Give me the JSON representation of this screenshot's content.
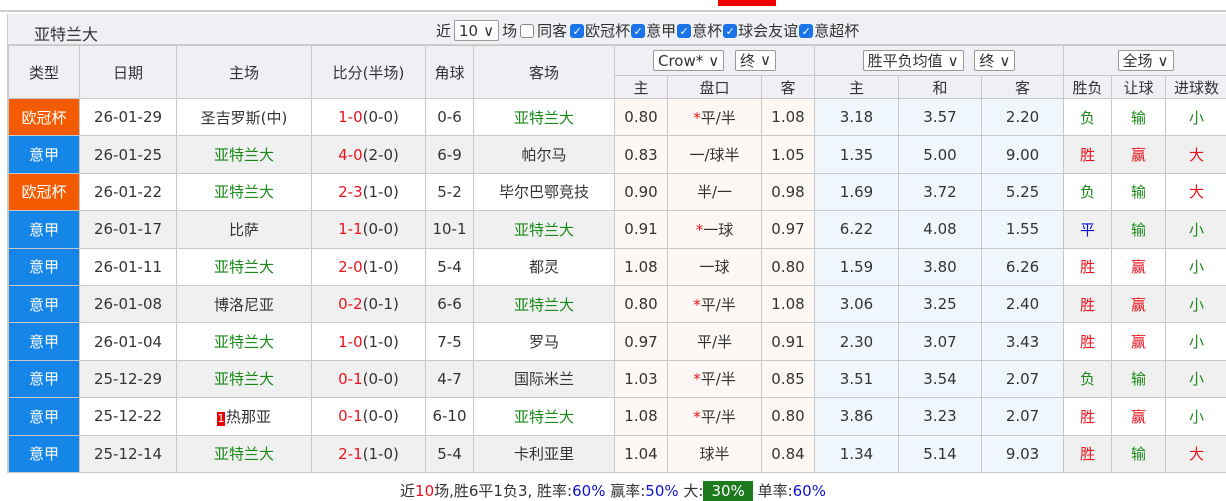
{
  "team": "亚特兰大",
  "filters": {
    "recent_label": "近",
    "count": "10",
    "games_label": "场",
    "same_home": "同客",
    "leagues": [
      "欧冠杯",
      "意甲",
      "意杯",
      "球会友谊",
      "意超杯"
    ]
  },
  "headers": {
    "type": "类型",
    "date": "日期",
    "home": "主场",
    "score": "比分(半场)",
    "corner": "角球",
    "away": "客场",
    "handicap_company": "Crow*",
    "handicap_stage": "终",
    "odds_type": "胜平负均值",
    "odds_stage": "终",
    "scope": "全场",
    "sub": [
      "主",
      "盘口",
      "客",
      "主",
      "和",
      "客",
      "胜负",
      "让球",
      "进球数"
    ]
  },
  "colors": {
    "欧冠杯": "#f45b00",
    "意甲": "#1586e8"
  },
  "rows": [
    {
      "type": "欧冠杯",
      "date": "26-01-29",
      "home": "圣吉罗斯(中)",
      "home_hl": false,
      "ft": "1-0",
      "ht": "(0-0)",
      "corner": "0-6",
      "away": "亚特兰大",
      "away_hl": true,
      "h1": "0.80",
      "star": true,
      "line": "平/半",
      "h2": "1.08",
      "o1": "3.18",
      "ox": "3.57",
      "o2": "2.20",
      "r": "负",
      "rc": "green",
      "ah": "输",
      "ahc": "green",
      "ou": "小",
      "ouc": "green"
    },
    {
      "type": "意甲",
      "date": "26-01-25",
      "home": "亚特兰大",
      "home_hl": true,
      "ft": "4-0",
      "ht": "(2-0)",
      "corner": "6-9",
      "away": "帕尔马",
      "away_hl": false,
      "h1": "0.83",
      "star": false,
      "line": "一/球半",
      "h2": "1.05",
      "o1": "1.35",
      "ox": "5.00",
      "o2": "9.00",
      "r": "胜",
      "rc": "red",
      "ah": "赢",
      "ahc": "red",
      "ou": "大",
      "ouc": "red"
    },
    {
      "type": "欧冠杯",
      "date": "26-01-22",
      "home": "亚特兰大",
      "home_hl": true,
      "ft": "2-3",
      "ht": "(1-0)",
      "corner": "5-2",
      "away": "毕尔巴鄂竞技",
      "away_hl": false,
      "h1": "0.90",
      "star": false,
      "line": "半/一",
      "h2": "0.98",
      "o1": "1.69",
      "ox": "3.72",
      "o2": "5.25",
      "r": "负",
      "rc": "green",
      "ah": "输",
      "ahc": "green",
      "ou": "大",
      "ouc": "red"
    },
    {
      "type": "意甲",
      "date": "26-01-17",
      "home": "比萨",
      "home_hl": false,
      "ft": "1-1",
      "ht": "(0-0)",
      "corner": "10-1",
      "away": "亚特兰大",
      "away_hl": true,
      "h1": "0.91",
      "star": true,
      "line": "一球",
      "h2": "0.97",
      "o1": "6.22",
      "ox": "4.08",
      "o2": "1.55",
      "r": "平",
      "rc": "blue",
      "ah": "输",
      "ahc": "green",
      "ou": "小",
      "ouc": "green"
    },
    {
      "type": "意甲",
      "date": "26-01-11",
      "home": "亚特兰大",
      "home_hl": true,
      "ft": "2-0",
      "ht": "(1-0)",
      "corner": "5-4",
      "away": "都灵",
      "away_hl": false,
      "h1": "1.08",
      "star": false,
      "line": "一球",
      "h2": "0.80",
      "o1": "1.59",
      "ox": "3.80",
      "o2": "6.26",
      "r": "胜",
      "rc": "red",
      "ah": "赢",
      "ahc": "red",
      "ou": "小",
      "ouc": "green"
    },
    {
      "type": "意甲",
      "date": "26-01-08",
      "home": "博洛尼亚",
      "home_hl": false,
      "ft": "0-2",
      "ht": "(0-1)",
      "corner": "6-6",
      "away": "亚特兰大",
      "away_hl": true,
      "h1": "0.80",
      "star": true,
      "line": "平/半",
      "h2": "1.08",
      "o1": "3.06",
      "ox": "3.25",
      "o2": "2.40",
      "r": "胜",
      "rc": "red",
      "ah": "赢",
      "ahc": "red",
      "ou": "小",
      "ouc": "green"
    },
    {
      "type": "意甲",
      "date": "26-01-04",
      "home": "亚特兰大",
      "home_hl": true,
      "ft": "1-0",
      "ht": "(1-0)",
      "corner": "7-5",
      "away": "罗马",
      "away_hl": false,
      "h1": "0.97",
      "star": false,
      "line": "平/半",
      "h2": "0.91",
      "o1": "2.30",
      "ox": "3.07",
      "o2": "3.43",
      "r": "胜",
      "rc": "red",
      "ah": "赢",
      "ahc": "red",
      "ou": "小",
      "ouc": "green"
    },
    {
      "type": "意甲",
      "date": "25-12-29",
      "home": "亚特兰大",
      "home_hl": true,
      "ft": "0-1",
      "ht": "(0-0)",
      "corner": "4-7",
      "away": "国际米兰",
      "away_hl": false,
      "h1": "1.03",
      "star": true,
      "line": "平/半",
      "h2": "0.85",
      "o1": "3.51",
      "ox": "3.54",
      "o2": "2.07",
      "r": "负",
      "rc": "green",
      "ah": "输",
      "ahc": "green",
      "ou": "小",
      "ouc": "green"
    },
    {
      "type": "意甲",
      "date": "25-12-22",
      "home": "热那亚",
      "home_badge": "1",
      "home_hl": false,
      "ft": "0-1",
      "ht": "(0-0)",
      "corner": "6-10",
      "away": "亚特兰大",
      "away_hl": true,
      "h1": "1.08",
      "star": true,
      "line": "平/半",
      "h2": "0.80",
      "o1": "3.86",
      "ox": "3.23",
      "o2": "2.07",
      "r": "胜",
      "rc": "red",
      "ah": "赢",
      "ahc": "red",
      "ou": "小",
      "ouc": "green"
    },
    {
      "type": "意甲",
      "date": "25-12-14",
      "home": "亚特兰大",
      "home_hl": true,
      "ft": "2-1",
      "ht": "(1-0)",
      "corner": "5-4",
      "away": "卡利亚里",
      "away_hl": false,
      "h1": "1.04",
      "star": false,
      "line": "球半",
      "h2": "0.84",
      "o1": "1.34",
      "ox": "5.14",
      "o2": "9.03",
      "r": "胜",
      "rc": "red",
      "ah": "输",
      "ahc": "green",
      "ou": "大",
      "ouc": "red"
    }
  ],
  "summary": {
    "p1": "近",
    "n": "10",
    "p2": "场,胜6平1负3, 胜率:",
    "win": "60%",
    "p3": " 赢率:",
    "cover": "50%",
    "p4": " 大:",
    "over": "30%",
    "p5": " 单率:",
    "odd": "60%"
  }
}
